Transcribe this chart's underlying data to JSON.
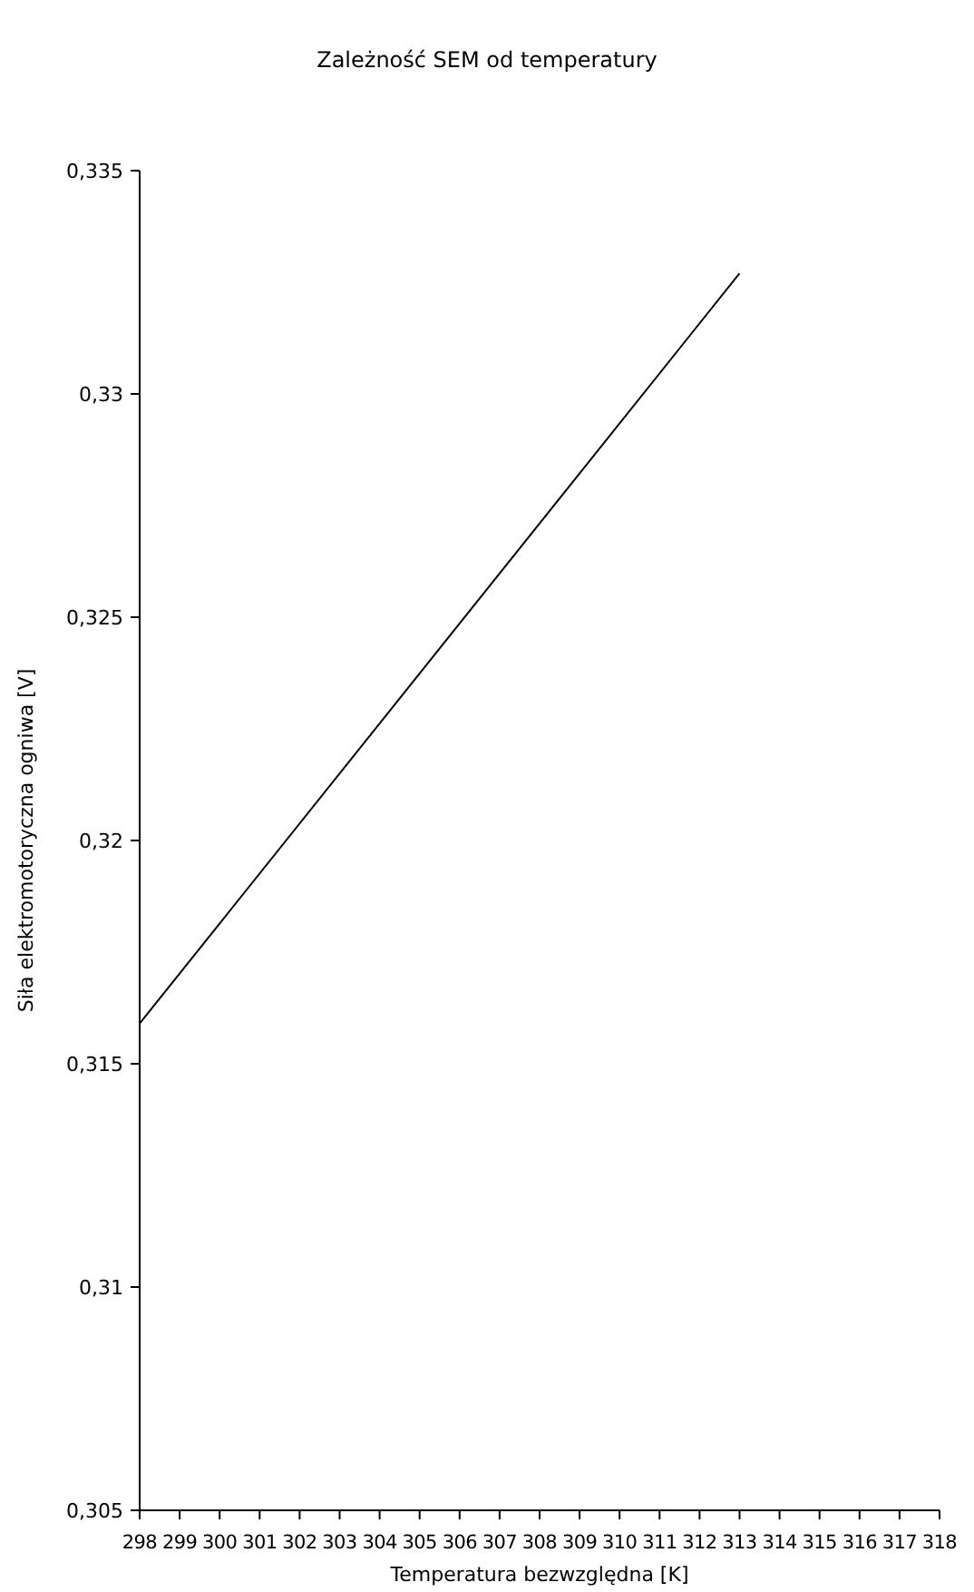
{
  "chart_data": {
    "type": "line",
    "title": "Zależność SEM od temperatury",
    "xlabel": "Temperatura bezwzględna [K]",
    "ylabel": "Siła elektromotoryczna ogniwa [V]",
    "x": [
      298,
      313
    ],
    "series": [
      {
        "color": "#000000",
        "values": [
          0.3159,
          0.3327
        ]
      }
    ],
    "xlim": [
      298,
      318
    ],
    "xticks": [
      298,
      299,
      300,
      301,
      302,
      303,
      304,
      305,
      306,
      307,
      308,
      309,
      310,
      311,
      312,
      313,
      314,
      315,
      316,
      317,
      318
    ],
    "ylim": [
      0.305,
      0.335
    ],
    "yticks": [
      {
        "value": 0.305,
        "label": "0,305"
      },
      {
        "value": 0.31,
        "label": "0,31"
      },
      {
        "value": 0.315,
        "label": "0,315"
      },
      {
        "value": 0.32,
        "label": "0,32"
      },
      {
        "value": 0.325,
        "label": "0,325"
      },
      {
        "value": 0.33,
        "label": "0,33"
      },
      {
        "value": 0.335,
        "label": "0,335"
      }
    ],
    "grid": false
  }
}
